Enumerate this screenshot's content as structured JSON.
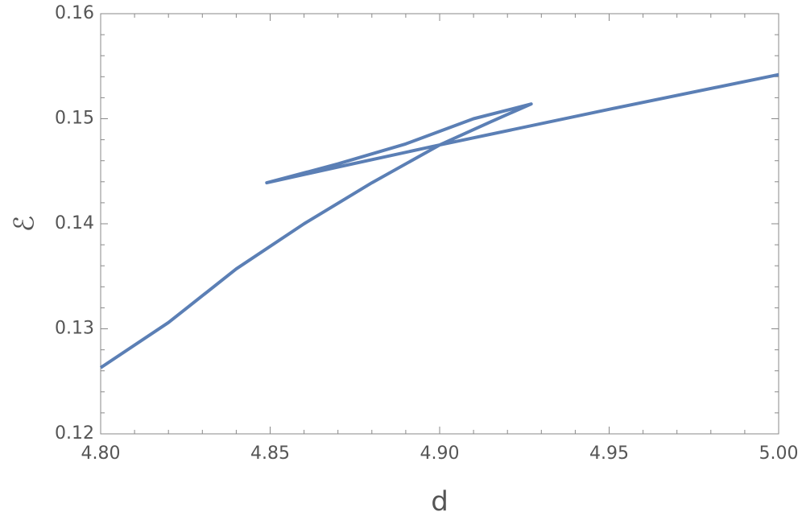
{
  "chart_data": {
    "type": "line",
    "x_label": "d",
    "y_label": "ℰ",
    "x": [
      4.8,
      4.82,
      4.84,
      4.86,
      4.88,
      4.9,
      4.915,
      4.927,
      4.91,
      4.89,
      4.87,
      4.849,
      4.87,
      4.9,
      4.95,
      5.0
    ],
    "series": [
      {
        "color": "#5b7fb5",
        "values": [
          0.1263,
          0.1306,
          0.1357,
          0.14,
          0.1439,
          0.1475,
          0.1497,
          0.1514,
          0.15,
          0.1476,
          0.1457,
          0.1439,
          0.1454,
          0.1475,
          0.1509,
          0.1542
        ]
      }
    ],
    "xlim": [
      4.8,
      5.0
    ],
    "xticks": [
      {
        "value": 4.8,
        "label": "4.80"
      },
      4.85,
      {
        "value": 4.9,
        "label": "4.90"
      },
      4.95,
      {
        "value": 5.0,
        "label": "5.00"
      }
    ],
    "ylim": [
      0.12,
      0.16
    ],
    "yticks": [
      0.12,
      0.13,
      0.14,
      0.15,
      0.16
    ]
  }
}
